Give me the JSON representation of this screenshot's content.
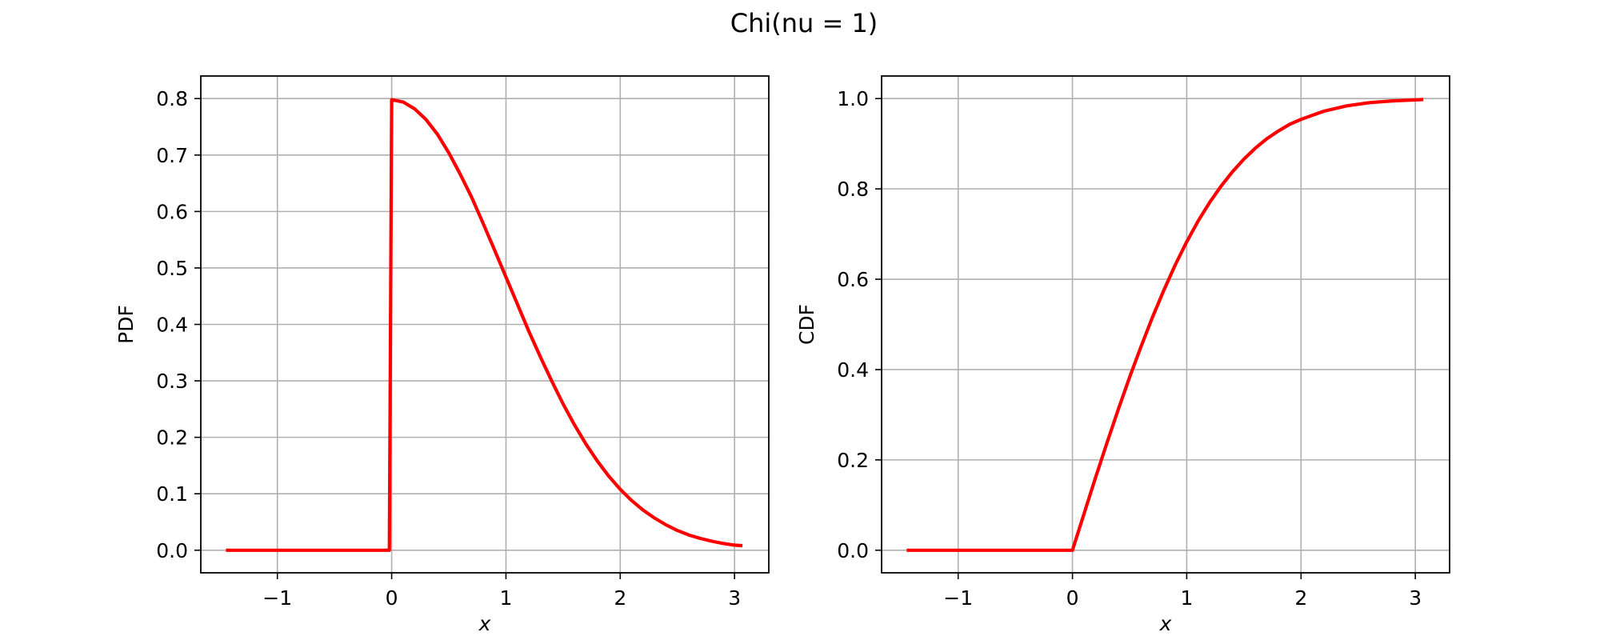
{
  "figure": {
    "title": "Chi(nu = 1)"
  },
  "style": {
    "line_color": "#ff0000",
    "grid_color": "#b0b0b0",
    "axes_color": "#000000",
    "background": "#ffffff"
  },
  "chart_data": [
    {
      "type": "line",
      "title": "",
      "xlabel": "x",
      "ylabel": "PDF",
      "xlim": [
        -1.67,
        3.3
      ],
      "ylim": [
        -0.04,
        0.84
      ],
      "xticks": [
        -1,
        0,
        1,
        2,
        3
      ],
      "xtick_labels": [
        "−1",
        "0",
        "1",
        "2",
        "3"
      ],
      "yticks": [
        0.0,
        0.1,
        0.2,
        0.3,
        0.4,
        0.5,
        0.6,
        0.7,
        0.8
      ],
      "ytick_labels": [
        "0.0",
        "0.1",
        "0.2",
        "0.3",
        "0.4",
        "0.5",
        "0.6",
        "0.7",
        "0.8"
      ],
      "grid": true,
      "series": [
        {
          "x": [
            -1.45,
            -0.5,
            -0.02,
            0.0,
            0.1,
            0.2,
            0.3,
            0.4,
            0.5,
            0.6,
            0.7,
            0.8,
            0.9,
            1.0,
            1.1,
            1.2,
            1.3,
            1.4,
            1.5,
            1.6,
            1.7,
            1.8,
            1.9,
            2.0,
            2.1,
            2.2,
            2.3,
            2.4,
            2.5,
            2.6,
            2.7,
            2.8,
            2.9,
            3.0,
            3.07
          ],
          "y": [
            0.0,
            0.0,
            0.0,
            0.798,
            0.794,
            0.782,
            0.763,
            0.737,
            0.704,
            0.666,
            0.625,
            0.579,
            0.532,
            0.484,
            0.436,
            0.388,
            0.343,
            0.3,
            0.259,
            0.222,
            0.188,
            0.158,
            0.131,
            0.108,
            0.088,
            0.071,
            0.057,
            0.045,
            0.035,
            0.027,
            0.021,
            0.016,
            0.012,
            0.009,
            0.008
          ]
        }
      ]
    },
    {
      "type": "line",
      "title": "",
      "xlabel": "x",
      "ylabel": "CDF",
      "xlim": [
        -1.67,
        3.3
      ],
      "ylim": [
        -0.05,
        1.05
      ],
      "xticks": [
        -1,
        0,
        1,
        2,
        3
      ],
      "xtick_labels": [
        "−1",
        "0",
        "1",
        "2",
        "3"
      ],
      "yticks": [
        0.0,
        0.2,
        0.4,
        0.6,
        0.8,
        1.0
      ],
      "ytick_labels": [
        "0.0",
        "0.2",
        "0.4",
        "0.6",
        "0.8",
        "1.0"
      ],
      "grid": true,
      "series": [
        {
          "x": [
            -1.45,
            -0.5,
            0.0,
            0.1,
            0.2,
            0.3,
            0.4,
            0.5,
            0.6,
            0.7,
            0.8,
            0.9,
            1.0,
            1.1,
            1.2,
            1.3,
            1.4,
            1.5,
            1.6,
            1.7,
            1.8,
            1.9,
            2.0,
            2.2,
            2.4,
            2.6,
            2.8,
            3.0,
            3.07
          ],
          "y": [
            0.0,
            0.0,
            0.0,
            0.08,
            0.159,
            0.236,
            0.311,
            0.383,
            0.451,
            0.516,
            0.576,
            0.632,
            0.683,
            0.729,
            0.77,
            0.806,
            0.838,
            0.866,
            0.89,
            0.911,
            0.928,
            0.943,
            0.954,
            0.972,
            0.984,
            0.991,
            0.995,
            0.997,
            0.998
          ]
        }
      ]
    }
  ]
}
